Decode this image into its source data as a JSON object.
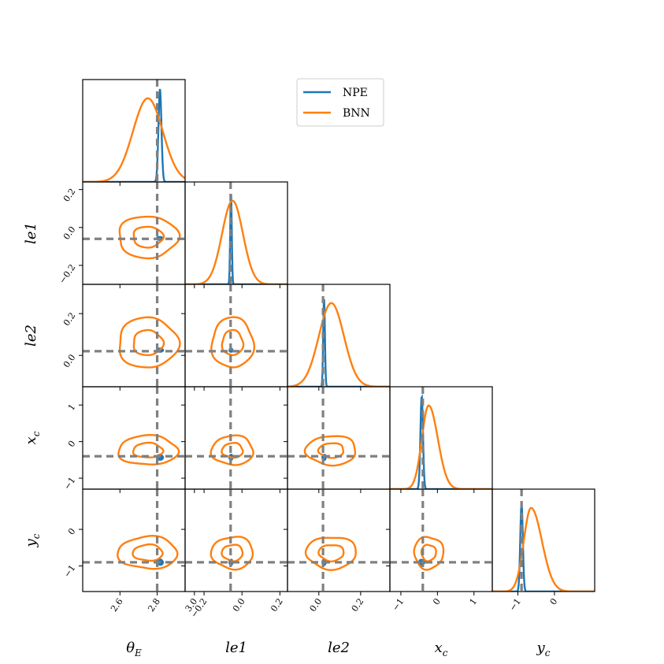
{
  "chart_data": {
    "type": "corner",
    "parameters": [
      {
        "key": "thetaE",
        "label": "θ",
        "subscript": "E",
        "ticks": [
          2.6,
          2.8,
          3.0
        ],
        "tick_labels": [
          "2.6",
          "2.8",
          "3.0"
        ],
        "range": [
          2.4,
          2.95
        ],
        "truth": 2.8
      },
      {
        "key": "le1",
        "label": "le1",
        "subscript": "",
        "ticks": [
          -0.2,
          0.0,
          0.2
        ],
        "tick_labels": [
          "−0.2",
          "0.0",
          "0.2"
        ],
        "range": [
          -0.3,
          0.24
        ],
        "truth": -0.06
      },
      {
        "key": "le2",
        "label": "le2",
        "subscript": "",
        "ticks": [
          0.0,
          0.2
        ],
        "tick_labels": [
          "0.0",
          "0.2"
        ],
        "range": [
          -0.15,
          0.34
        ],
        "truth": 0.02
      },
      {
        "key": "xc",
        "label": "x",
        "subscript": "c",
        "ticks": [
          -1,
          0,
          1
        ],
        "tick_labels": [
          "−1",
          "0",
          "1"
        ],
        "range": [
          -1.3,
          1.5
        ],
        "truth": -0.4
      },
      {
        "key": "yc",
        "label": "y",
        "subscript": "c",
        "ticks": [
          -1,
          0
        ],
        "tick_labels": [
          "−1",
          "0"
        ],
        "range": [
          -1.7,
          1.1
        ],
        "truth": -0.9
      }
    ],
    "series": [
      {
        "name": "NPE",
        "color": "#1f77b4",
        "mean": [
          2.815,
          -0.058,
          0.025,
          -0.43,
          -0.9
        ],
        "std": [
          0.008,
          0.004,
          0.004,
          0.035,
          0.035
        ],
        "pdf_peak": [
          1.0,
          1.0,
          0.95,
          1.0,
          0.95
        ]
      },
      {
        "name": "BNN",
        "color": "#ff7f0e",
        "mean": [
          2.75,
          -0.05,
          0.06,
          -0.24,
          -0.64
        ],
        "std": [
          0.08,
          0.055,
          0.06,
          0.2,
          0.22
        ],
        "pdf_peak": [
          0.9,
          0.9,
          0.9,
          0.9,
          0.9
        ],
        "skew": [
          0,
          0,
          0,
          0.5,
          0.7
        ]
      }
    ],
    "contour_levels": [
      1,
      2
    ],
    "truth_color": "#808080",
    "legend_position": "top-right",
    "grid": false
  }
}
